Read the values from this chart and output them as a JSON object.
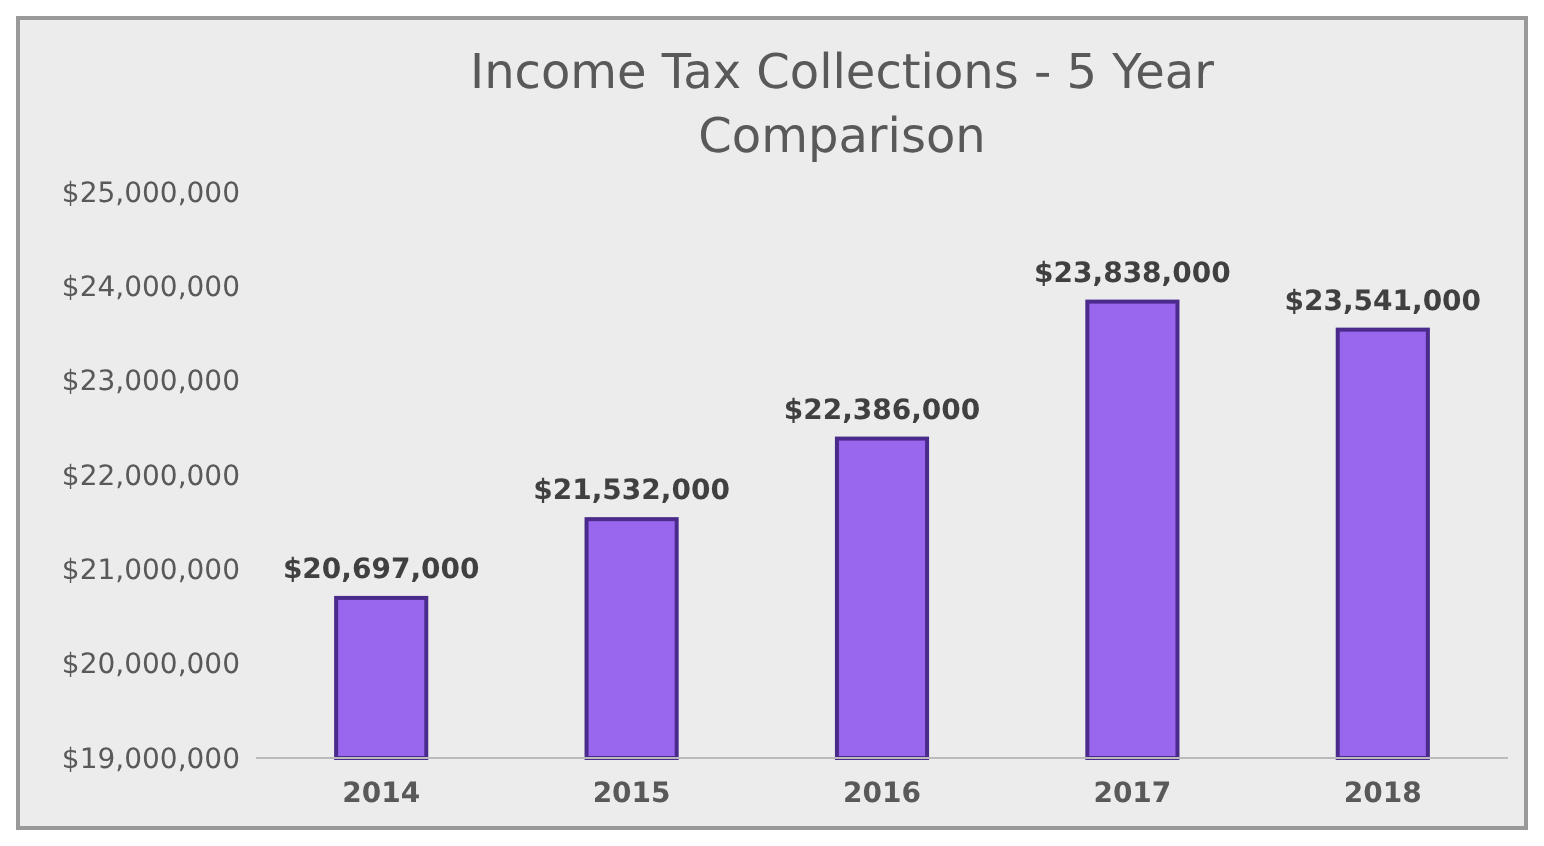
{
  "chart_data": {
    "type": "bar",
    "title": "Income Tax Collections - 5 Year Comparison",
    "categories": [
      "2014",
      "2015",
      "2016",
      "2017",
      "2018"
    ],
    "values": [
      20697000,
      21532000,
      22386000,
      23838000,
      23541000
    ],
    "color": "#9966ee",
    "ylim": [
      19000000,
      25000000
    ],
    "yticks": [
      {
        "value": 19000000,
        "label": "$19,000,000"
      },
      {
        "value": 20000000,
        "label": "$20,000,000"
      },
      {
        "value": 21000000,
        "label": "$21,000,000"
      },
      {
        "value": 22000000,
        "label": "$22,000,000"
      },
      {
        "value": 23000000,
        "label": "$23,000,000"
      },
      {
        "value": 24000000,
        "label": "$24,000,000"
      },
      {
        "value": 25000000,
        "label": "$25,000,000"
      }
    ],
    "value_labels": [
      "$20,697,000",
      "$21,532,000",
      "$22,386,000",
      "$23,838,000",
      "$23,541,000"
    ],
    "grid": false
  }
}
